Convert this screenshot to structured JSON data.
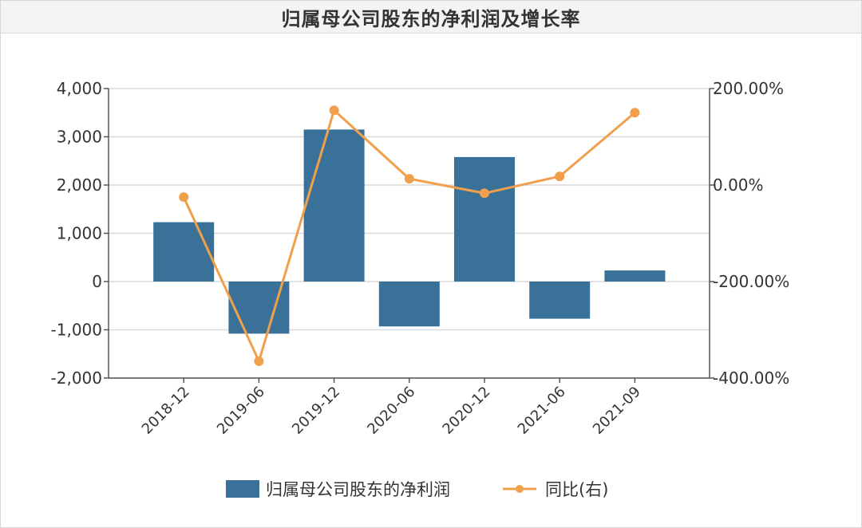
{
  "title": "归属母公司股东的净利润及增长率",
  "colors": {
    "bar": "#3a7199",
    "line": "#f0a04b",
    "grid": "#d9d9d9",
    "axis": "#555555"
  },
  "chart_data": {
    "type": "bar",
    "title": "归属母公司股东的净利润及增长率",
    "categories": [
      "2018-12",
      "2019-06",
      "2019-12",
      "2020-06",
      "2020-12",
      "2021-06",
      "2021-09"
    ],
    "series": [
      {
        "name": "归属母公司股东的净利润",
        "type": "bar",
        "axis": "left",
        "values": [
          1230,
          -1080,
          3150,
          -930,
          2580,
          -770,
          230
        ]
      },
      {
        "name": "同比(右)",
        "type": "line",
        "axis": "right",
        "values": [
          -25,
          -365,
          155,
          13,
          -17,
          18,
          150
        ]
      }
    ],
    "y_left": {
      "ylim": [
        -2000,
        4000
      ],
      "ticks": [
        4000,
        3000,
        2000,
        1000,
        0,
        -1000,
        -2000
      ],
      "tick_labels": [
        "4,000",
        "3,000",
        "2,000",
        "1,000",
        "0",
        "-1,000",
        "-2,000"
      ]
    },
    "y_right": {
      "ylim": [
        -400,
        200
      ],
      "ticks": [
        200,
        0,
        -200,
        -400
      ],
      "tick_labels": [
        "200.00%",
        "0.00%",
        "-200.00%",
        "-400.00%"
      ]
    },
    "grid": true,
    "legend": {
      "position": "bottom",
      "entries": [
        "归属母公司股东的净利润",
        "同比(右)"
      ]
    }
  }
}
